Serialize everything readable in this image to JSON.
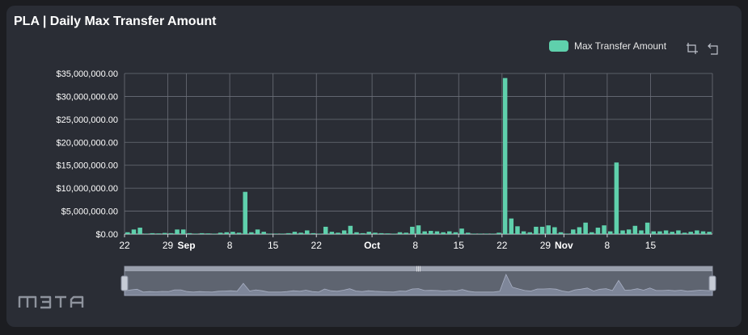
{
  "title": "PLA | Daily Max Transfer Amount",
  "legend": {
    "label": "Max Transfer Amount",
    "color": "#5fd0ac"
  },
  "toolbar": {
    "zoom_icon": "zoom-icon",
    "restore_icon": "restore-icon"
  },
  "watermark": "m3ta",
  "chart_data": {
    "type": "bar",
    "title": "PLA | Daily Max Transfer Amount",
    "xlabel": "",
    "ylabel": "",
    "ylim": [
      0,
      35000000
    ],
    "y_ticks": [
      "$0.00",
      "$5,000,000.00",
      "$10,000,000.00",
      "$15,000,000.00",
      "$20,000,000.00",
      "$25,000,000.00",
      "$30,000,000.00",
      "$35,000,000.00"
    ],
    "x_ticks": [
      {
        "label": "22",
        "bold": false,
        "day": 0
      },
      {
        "label": "29",
        "bold": false,
        "day": 7
      },
      {
        "label": "Sep",
        "bold": true,
        "day": 10
      },
      {
        "label": "8",
        "bold": false,
        "day": 17
      },
      {
        "label": "15",
        "bold": false,
        "day": 24
      },
      {
        "label": "22",
        "bold": false,
        "day": 31
      },
      {
        "label": "Oct",
        "bold": true,
        "day": 40
      },
      {
        "label": "8",
        "bold": false,
        "day": 47
      },
      {
        "label": "15",
        "bold": false,
        "day": 54
      },
      {
        "label": "22",
        "bold": false,
        "day": 61
      },
      {
        "label": "29",
        "bold": false,
        "day": 68
      },
      {
        "label": "Nov",
        "bold": true,
        "day": 71
      },
      {
        "label": "8",
        "bold": false,
        "day": 78
      },
      {
        "label": "15",
        "bold": false,
        "day": 85
      }
    ],
    "grid": true,
    "legend_position": "top-right",
    "series": [
      {
        "name": "Max Transfer Amount",
        "color": "#5fd0ac",
        "values": [
          400000,
          1000000,
          1400000,
          100000,
          200000,
          150000,
          250000,
          200000,
          1000000,
          1000000,
          200000,
          100000,
          200000,
          150000,
          100000,
          300000,
          400000,
          500000,
          300000,
          9200000,
          400000,
          1000000,
          500000,
          100000,
          100000,
          100000,
          200000,
          500000,
          300000,
          800000,
          200000,
          100000,
          1600000,
          500000,
          300000,
          800000,
          1800000,
          400000,
          200000,
          500000,
          300000,
          200000,
          150000,
          100000,
          400000,
          300000,
          1600000,
          1900000,
          600000,
          700000,
          600000,
          400000,
          600000,
          400000,
          1200000,
          300000,
          100000,
          100000,
          100000,
          100000,
          300000,
          34000000,
          3400000,
          1700000,
          600000,
          400000,
          1600000,
          1600000,
          1900000,
          1500000,
          400000,
          100000,
          1000000,
          1500000,
          2500000,
          400000,
          1400000,
          1900000,
          600000,
          15600000,
          800000,
          1000000,
          1800000,
          800000,
          2500000,
          600000,
          600000,
          800000,
          500000,
          800000,
          300000,
          500000,
          800000,
          600000,
          500000
        ],
        "navigator_values": [
          400000,
          1000000,
          1400000,
          100000,
          200000,
          150000,
          250000,
          200000,
          1000000,
          1000000,
          200000,
          100000,
          200000,
          150000,
          100000,
          300000,
          400000,
          500000,
          300000,
          9200000,
          400000,
          1000000,
          500000,
          100000,
          100000,
          100000,
          200000,
          500000,
          300000,
          800000,
          200000,
          100000,
          1600000,
          500000,
          300000,
          800000,
          1800000,
          400000,
          200000,
          500000,
          300000,
          200000,
          150000,
          100000,
          400000,
          300000,
          1600000,
          1900000,
          600000,
          700000,
          600000,
          400000,
          600000,
          400000,
          1200000,
          300000,
          100000,
          100000,
          100000,
          100000,
          300000,
          34000000,
          3400000,
          1700000,
          600000,
          400000,
          1600000,
          1600000,
          1900000,
          1500000,
          400000,
          100000,
          1000000,
          1500000,
          2500000,
          400000,
          1400000,
          1900000,
          600000,
          15600000,
          800000,
          1000000,
          1800000,
          800000,
          2500000,
          600000,
          600000,
          800000,
          500000,
          800000,
          300000,
          500000,
          800000,
          600000,
          500000
        ]
      }
    ]
  }
}
